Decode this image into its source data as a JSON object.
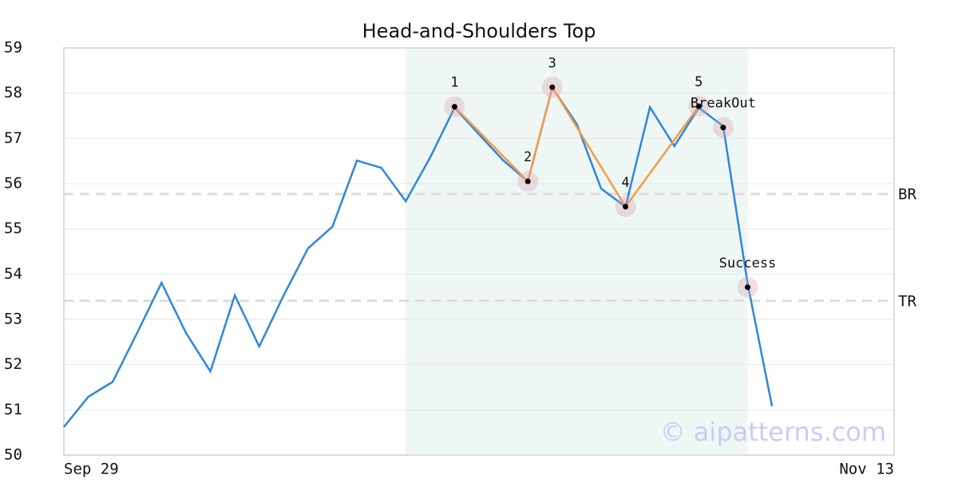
{
  "chart_data": {
    "type": "line",
    "title": "Head-and-Shoulders Top",
    "watermark": "© aipatterns.com",
    "x": [
      0,
      1,
      2,
      3,
      4,
      5,
      6,
      7,
      8,
      9,
      10,
      11,
      12,
      13,
      14,
      15,
      16,
      17,
      18,
      19,
      20,
      21,
      22,
      23,
      24,
      25,
      26,
      27,
      28,
      29
    ],
    "values": [
      50.62,
      51.29,
      51.62,
      52.7,
      53.81,
      52.7,
      51.85,
      53.53,
      52.4,
      53.53,
      54.57,
      55.05,
      56.51,
      56.35,
      55.61,
      56.58,
      57.68,
      57.09,
      56.51,
      56.05,
      58.12,
      57.32,
      55.89,
      55.49,
      57.69,
      56.83,
      57.68,
      57.27,
      53.79,
      51.08
    ],
    "color": "#2e86de",
    "xlim": [
      0,
      34
    ],
    "xticks": [
      {
        "value": 0,
        "label": "Sep 29"
      },
      {
        "value": 34,
        "label": "Nov 13"
      }
    ],
    "ylim": [
      50,
      59
    ],
    "yticks": [
      50,
      51,
      52,
      53,
      54,
      55,
      56,
      57,
      58,
      59
    ],
    "grid": true,
    "highlight": [
      14,
      28
    ],
    "pattern": {
      "color": "#f39c45",
      "labels": [
        "1",
        "2",
        "3",
        "4",
        "5"
      ],
      "x": [
        16,
        19,
        20,
        23,
        26
      ],
      "values": [
        57.7,
        56.05,
        58.13,
        55.49,
        57.71
      ]
    },
    "events": [
      {
        "label": "BreakOut",
        "x": 27,
        "value": 57.24
      },
      {
        "label": "Success",
        "x": 28,
        "value": 53.71
      }
    ],
    "hlines": [
      {
        "label": "BR",
        "value": 55.77
      },
      {
        "label": "TR",
        "value": 53.41
      }
    ]
  }
}
